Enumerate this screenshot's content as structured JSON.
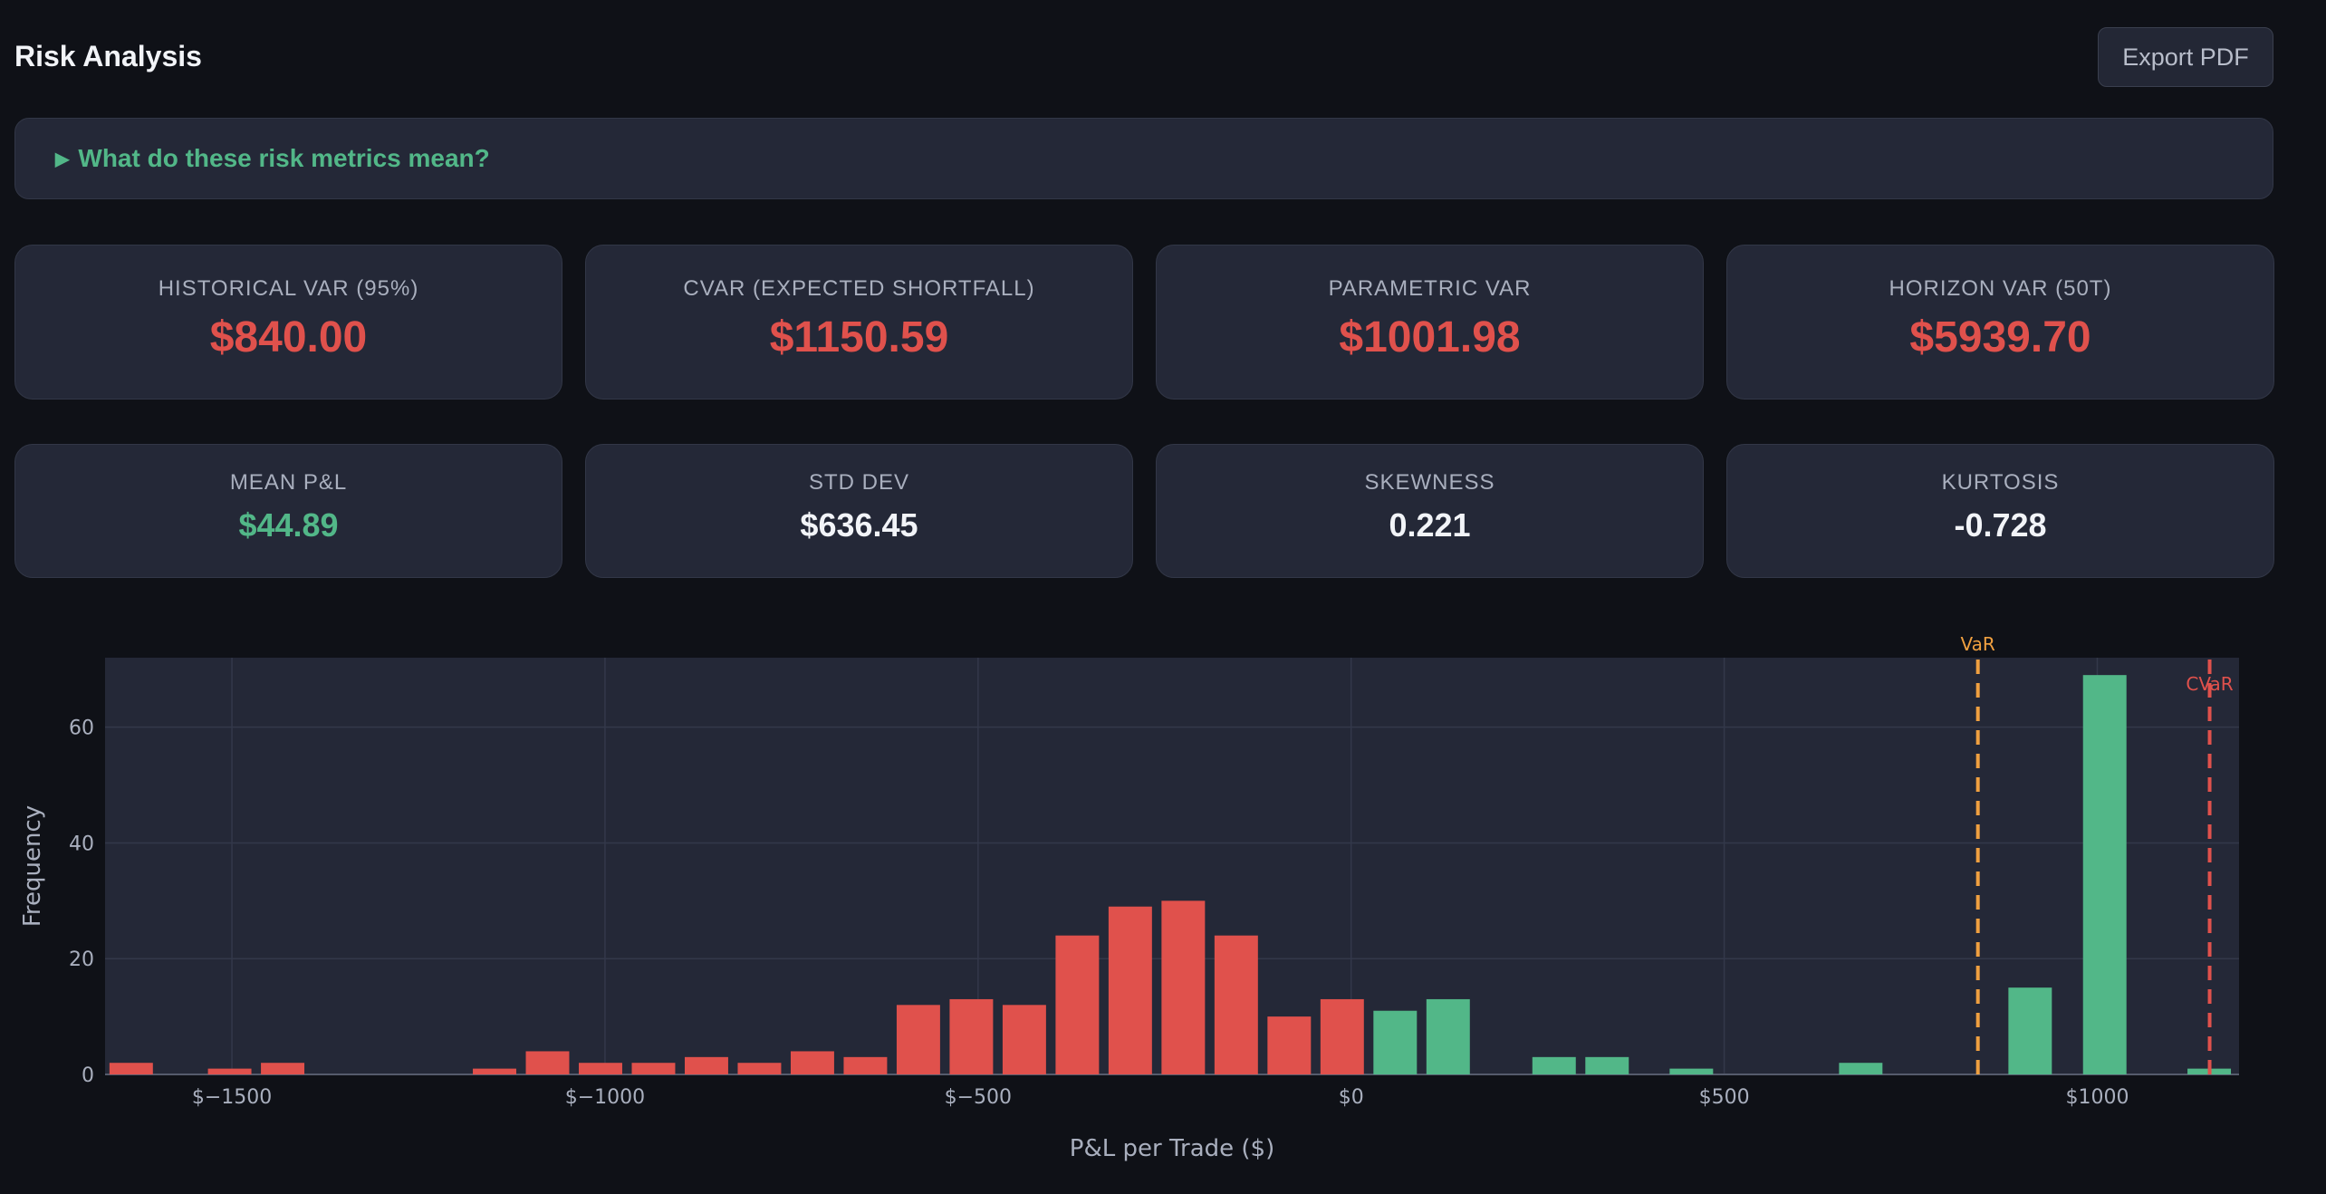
{
  "header": {
    "title": "Risk Analysis",
    "export_label": "Export PDF"
  },
  "explainer": {
    "icon": "triangle-right-icon",
    "label": "What do these risk metrics mean?"
  },
  "metrics_row1": [
    {
      "label": "HISTORICAL VAR (95%)",
      "value": "$840.00"
    },
    {
      "label": "CVAR (EXPECTED SHORTFALL)",
      "value": "$1150.59"
    },
    {
      "label": "PARAMETRIC VAR",
      "value": "$1001.98"
    },
    {
      "label": "HORIZON VAR (50T)",
      "value": "$5939.70"
    }
  ],
  "metrics_row2": [
    {
      "label": "MEAN P&L",
      "value": "$44.89"
    },
    {
      "label": "STD DEV",
      "value": "$636.45"
    },
    {
      "label": "SKEWNESS",
      "value": "0.221"
    },
    {
      "label": "KURTOSIS",
      "value": "-0.728"
    }
  ],
  "colors": {
    "loss": "#e0514c",
    "gain": "#52b788",
    "var_line": "#f0a040",
    "cvar_line": "#e0514c",
    "plot_bg": "#242837"
  },
  "chart_data": {
    "type": "bar",
    "xlabel": "P&L per Trade ($)",
    "ylabel": "Frequency",
    "xlim": [
      -1670,
      1190
    ],
    "ylim": [
      0,
      72
    ],
    "x_ticks": [
      -1500,
      -1000,
      -500,
      0,
      500,
      1000
    ],
    "x_tick_labels": [
      "$−1500",
      "$−1000",
      "$−500",
      "$0",
      "$500",
      "$1000"
    ],
    "y_ticks": [
      0,
      20,
      40,
      60
    ],
    "y_tick_labels": [
      "0",
      "20",
      "40",
      "60"
    ],
    "bin_width": 71,
    "bins": [
      {
        "x": -1635,
        "y": 2,
        "sign": "loss"
      },
      {
        "x": -1503,
        "y": 1,
        "sign": "loss"
      },
      {
        "x": -1432,
        "y": 2,
        "sign": "loss"
      },
      {
        "x": -1148,
        "y": 1,
        "sign": "loss"
      },
      {
        "x": -1077,
        "y": 4,
        "sign": "loss"
      },
      {
        "x": -1006,
        "y": 2,
        "sign": "loss"
      },
      {
        "x": -935,
        "y": 2,
        "sign": "loss"
      },
      {
        "x": -864,
        "y": 3,
        "sign": "loss"
      },
      {
        "x": -793,
        "y": 2,
        "sign": "loss"
      },
      {
        "x": -722,
        "y": 4,
        "sign": "loss"
      },
      {
        "x": -651,
        "y": 3,
        "sign": "loss"
      },
      {
        "x": -580,
        "y": 12,
        "sign": "loss"
      },
      {
        "x": -509,
        "y": 13,
        "sign": "loss"
      },
      {
        "x": -438,
        "y": 12,
        "sign": "loss"
      },
      {
        "x": -367,
        "y": 24,
        "sign": "loss"
      },
      {
        "x": -296,
        "y": 29,
        "sign": "loss"
      },
      {
        "x": -225,
        "y": 30,
        "sign": "loss"
      },
      {
        "x": -154,
        "y": 24,
        "sign": "loss"
      },
      {
        "x": -83,
        "y": 10,
        "sign": "loss"
      },
      {
        "x": -12,
        "y": 13,
        "sign": "loss"
      },
      {
        "x": 59,
        "y": 11,
        "sign": "gain"
      },
      {
        "x": 130,
        "y": 13,
        "sign": "gain"
      },
      {
        "x": 272,
        "y": 3,
        "sign": "gain"
      },
      {
        "x": 343,
        "y": 3,
        "sign": "gain"
      },
      {
        "x": 456,
        "y": 1,
        "sign": "gain"
      },
      {
        "x": 683,
        "y": 2,
        "sign": "gain"
      },
      {
        "x": 910,
        "y": 15,
        "sign": "gain"
      },
      {
        "x": 1010,
        "y": 69,
        "sign": "gain"
      },
      {
        "x": 1150,
        "y": 1,
        "sign": "gain"
      }
    ],
    "lines": [
      {
        "label": "VaR",
        "x": 840
      },
      {
        "label": "CVaR",
        "x": 1150.59
      }
    ],
    "grid": true
  }
}
